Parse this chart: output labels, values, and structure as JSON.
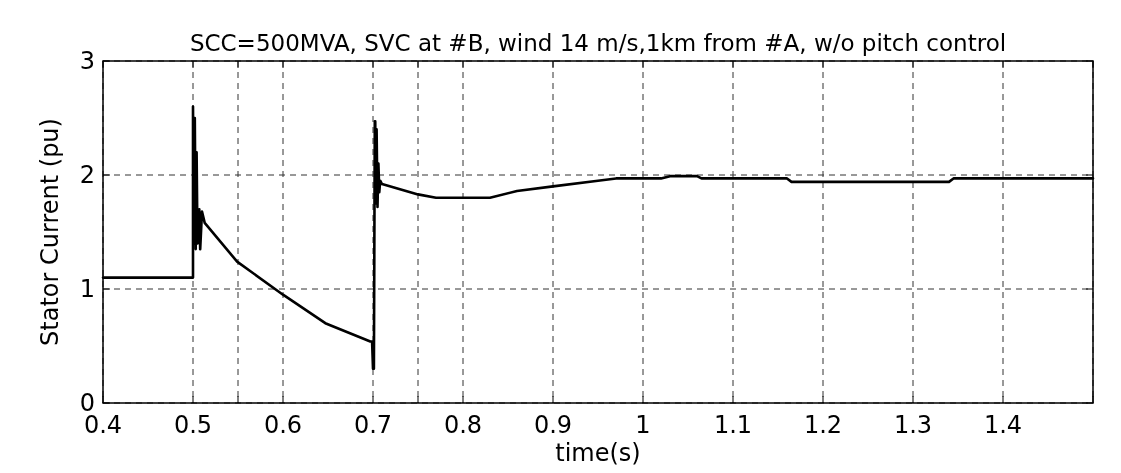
{
  "chart_data": {
    "type": "line",
    "title": "SCC=500MVA, SVC at #B, wind 14 m/s,1km from #A, w/o pitch control",
    "xlabel": "time(s)",
    "ylabel": "Stator Current (pu)",
    "xlim": [
      0.4,
      1.5
    ],
    "xticks": [
      0.4,
      0.5,
      {
        "value": 0.55,
        "label": null
      },
      0.6,
      0.7,
      {
        "value": 0.75,
        "label": null
      },
      0.8,
      0.9,
      1,
      1.1,
      1.2,
      1.3,
      1.4,
      {
        "value": 1.5,
        "label": null
      }
    ],
    "ylim": [
      0,
      3
    ],
    "yticks": [
      0,
      1,
      2,
      3
    ],
    "grid": true,
    "line_style": "solid",
    "series": [
      {
        "color": "#000000",
        "x": [
          0.4,
          0.5,
          0.5,
          0.501,
          0.502,
          0.503,
          0.504,
          0.505,
          0.507,
          0.508,
          0.51,
          0.513,
          0.549,
          0.6,
          0.647,
          0.697,
          0.699,
          0.7,
          0.701,
          0.702,
          0.7025,
          0.703,
          0.704,
          0.705,
          0.706,
          0.707,
          0.708,
          0.71,
          0.75,
          0.77,
          0.8,
          0.83,
          0.86,
          0.9,
          0.95,
          0.97,
          1.0,
          1.02,
          1.03,
          1.06,
          1.065,
          1.16,
          1.165,
          1.34,
          1.345,
          1.5
        ],
        "values": [
          1.1,
          1.1,
          2.6,
          1.4,
          2.5,
          1.35,
          2.2,
          1.4,
          1.7,
          1.35,
          1.68,
          1.58,
          1.24,
          0.95,
          0.7,
          0.54,
          0.54,
          0.3,
          0.3,
          2.47,
          2.47,
          1.75,
          2.4,
          1.72,
          2.1,
          1.85,
          1.95,
          1.92,
          1.83,
          1.8,
          1.8,
          1.8,
          1.86,
          1.9,
          1.95,
          1.97,
          1.97,
          1.97,
          1.99,
          1.99,
          1.97,
          1.97,
          1.94,
          1.94,
          1.97,
          1.97
        ]
      }
    ]
  }
}
